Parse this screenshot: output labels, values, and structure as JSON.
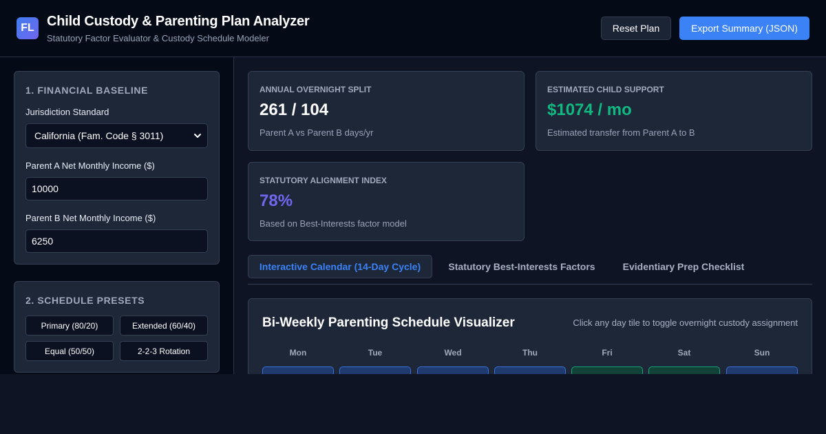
{
  "header": {
    "logo_text": "FL",
    "title": "Child Custody & Parenting Plan Analyzer",
    "subtitle": "Statutory Factor Evaluator & Custody Schedule Modeler",
    "reset_label": "Reset Plan",
    "export_label": "Export Summary (JSON)"
  },
  "sidebar": {
    "financial": {
      "title": "1. FINANCIAL BASELINE",
      "jurisdiction_label": "Jurisdiction Standard",
      "jurisdiction_value": "California (Fam. Code § 3011)",
      "parent_a_label": "Parent A Net Monthly Income ($)",
      "parent_a_value": "10000",
      "parent_b_label": "Parent B Net Monthly Income ($)",
      "parent_b_value": "6250"
    },
    "presets": {
      "title": "2. SCHEDULE PRESETS",
      "items": [
        "Primary (80/20)",
        "Extended (60/40)",
        "Equal (50/50)",
        "2-2-3 Rotation"
      ]
    }
  },
  "stats": {
    "overnight": {
      "label": "ANNUAL OVERNIGHT SPLIT",
      "value": "261 / 104",
      "desc": "Parent A vs Parent B days/yr"
    },
    "support": {
      "label": "ESTIMATED CHILD SUPPORT",
      "value": "$1074 / mo",
      "desc": "Estimated transfer from Parent A to B"
    },
    "alignment": {
      "label": "STATUTORY ALIGNMENT INDEX",
      "value": "78%",
      "desc": "Based on Best-Interests factor model"
    }
  },
  "tabs": [
    "Interactive Calendar (14-Day Cycle)",
    "Statutory Best-Interests Factors",
    "Evidentiary Prep Checklist"
  ],
  "calendar": {
    "title": "Bi-Weekly Parenting Schedule Visualizer",
    "hint": "Click any day tile to toggle overnight custody assignment",
    "days": [
      "Mon",
      "Tue",
      "Wed",
      "Thu",
      "Fri",
      "Sat",
      "Sun"
    ],
    "week1_assignment": [
      "A",
      "A",
      "A",
      "A",
      "B",
      "B",
      "A"
    ]
  },
  "colors": {
    "accent": "#3b82f6",
    "support_green": "#10b981",
    "alignment_purple": "#6f68ee",
    "parent_a_tile": "#1e3a6e",
    "parent_b_tile": "#134238"
  }
}
